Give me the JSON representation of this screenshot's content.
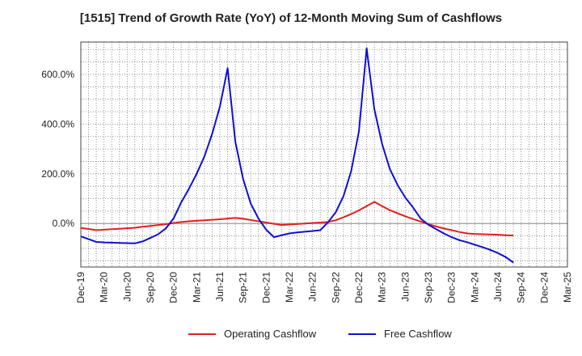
{
  "chart_data": {
    "type": "line",
    "title": "[1515]  Trend of Growth Rate (YoY) of 12-Month Moving Sum of Cashflows",
    "xlabel": "",
    "ylabel": "",
    "ylim": [
      -175,
      730
    ],
    "grid": true,
    "legend_position": "bottom",
    "x_tick_labels": [
      "Dec-19",
      "Mar-20",
      "Jun-20",
      "Sep-20",
      "Dec-20",
      "Mar-21",
      "Jun-21",
      "Sep-21",
      "Dec-21",
      "Mar-22",
      "Jun-22",
      "Sep-22",
      "Dec-22",
      "Mar-23",
      "Jun-23",
      "Sep-23",
      "Dec-23",
      "Mar-24",
      "Jun-24",
      "Sep-24",
      "Dec-24",
      "Mar-25"
    ],
    "y_ticks": [
      {
        "value": 0,
        "label": "0.0%"
      },
      {
        "value": 200,
        "label": "200.0%"
      },
      {
        "value": 400,
        "label": "400.0%"
      },
      {
        "value": 600,
        "label": "600.0%"
      }
    ],
    "series": [
      {
        "name": "Operating Cashflow",
        "color": "#e02020",
        "values": [
          -18,
          -22,
          -27,
          -25,
          -23,
          -21,
          -19,
          -17,
          -13,
          -10,
          -6,
          -3,
          2,
          6,
          9,
          11,
          13,
          15,
          17,
          20,
          23,
          19,
          14,
          9,
          4,
          -1,
          -6,
          -4,
          -2,
          0,
          2,
          4,
          6,
          13,
          25,
          38,
          53,
          70,
          87,
          70,
          54,
          41,
          29,
          18,
          8,
          -2,
          -12,
          -20,
          -27,
          -34,
          -40,
          -42,
          -43,
          -44,
          -45,
          -47,
          -48
        ]
      },
      {
        "name": "Free Cashflow",
        "color": "#1010d0",
        "values": [
          -52,
          -63,
          -74,
          -76,
          -77,
          -78,
          -79,
          -80,
          -72,
          -58,
          -43,
          -20,
          20,
          85,
          140,
          200,
          270,
          360,
          470,
          625,
          330,
          180,
          80,
          20,
          -25,
          -55,
          -47,
          -40,
          -36,
          -33,
          -30,
          -27,
          5,
          45,
          110,
          210,
          370,
          705,
          460,
          320,
          220,
          155,
          105,
          65,
          20,
          -5,
          -23,
          -40,
          -55,
          -67,
          -75,
          -85,
          -95,
          -106,
          -119,
          -135,
          -157
        ]
      }
    ]
  }
}
